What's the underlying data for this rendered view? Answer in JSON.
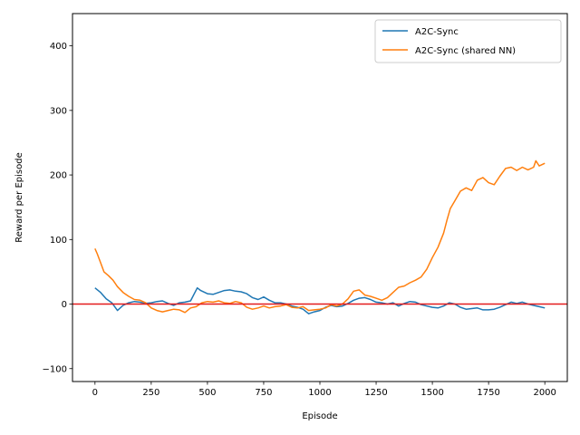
{
  "chart_data": {
    "type": "line",
    "title": "",
    "xlabel": "Episode",
    "ylabel": "Reward per Episode",
    "xlim": [
      -100,
      2100
    ],
    "ylim": [
      -120,
      450
    ],
    "xticks": [
      0,
      250,
      500,
      750,
      1000,
      1250,
      1500,
      1750,
      2000
    ],
    "xtick_labels": [
      "0",
      "250",
      "500",
      "750",
      "1000",
      "1250",
      "1500",
      "1750",
      "2000"
    ],
    "yticks": [
      -100,
      0,
      100,
      200,
      300,
      400
    ],
    "ytick_labels": [
      "−100",
      "0",
      "100",
      "200",
      "300",
      "400"
    ],
    "grid": false,
    "legend_position": "upper right",
    "reference_line": {
      "y": 0,
      "color": "#e31a1c"
    },
    "series": [
      {
        "name": "A2C-Sync",
        "color": "#1f77b4",
        "points": [
          [
            0,
            25
          ],
          [
            25,
            18
          ],
          [
            50,
            8
          ],
          [
            75,
            2
          ],
          [
            100,
            -10
          ],
          [
            125,
            -2
          ],
          [
            150,
            2
          ],
          [
            175,
            4
          ],
          [
            200,
            3
          ],
          [
            225,
            1
          ],
          [
            250,
            2
          ],
          [
            275,
            4
          ],
          [
            300,
            5
          ],
          [
            325,
            1
          ],
          [
            350,
            -2
          ],
          [
            375,
            2
          ],
          [
            400,
            3
          ],
          [
            425,
            5
          ],
          [
            440,
            15
          ],
          [
            455,
            25
          ],
          [
            470,
            21
          ],
          [
            500,
            16
          ],
          [
            525,
            15
          ],
          [
            550,
            18
          ],
          [
            575,
            21
          ],
          [
            600,
            22
          ],
          [
            625,
            20
          ],
          [
            650,
            19
          ],
          [
            675,
            16
          ],
          [
            700,
            10
          ],
          [
            725,
            7
          ],
          [
            750,
            11
          ],
          [
            775,
            6
          ],
          [
            800,
            2
          ],
          [
            825,
            2
          ],
          [
            850,
            0
          ],
          [
            875,
            -3
          ],
          [
            900,
            -5
          ],
          [
            925,
            -8
          ],
          [
            950,
            -15
          ],
          [
            975,
            -12
          ],
          [
            1000,
            -10
          ],
          [
            1025,
            -5
          ],
          [
            1050,
            -2
          ],
          [
            1075,
            -4
          ],
          [
            1100,
            -3
          ],
          [
            1125,
            1
          ],
          [
            1150,
            6
          ],
          [
            1175,
            9
          ],
          [
            1200,
            10
          ],
          [
            1225,
            7
          ],
          [
            1250,
            3
          ],
          [
            1275,
            2
          ],
          [
            1300,
            0
          ],
          [
            1325,
            2
          ],
          [
            1350,
            -3
          ],
          [
            1375,
            1
          ],
          [
            1400,
            4
          ],
          [
            1425,
            3
          ],
          [
            1450,
            -1
          ],
          [
            1475,
            -3
          ],
          [
            1500,
            -5
          ],
          [
            1525,
            -6
          ],
          [
            1550,
            -3
          ],
          [
            1575,
            2
          ],
          [
            1600,
            0
          ],
          [
            1625,
            -5
          ],
          [
            1650,
            -8
          ],
          [
            1675,
            -7
          ],
          [
            1700,
            -6
          ],
          [
            1725,
            -9
          ],
          [
            1750,
            -9
          ],
          [
            1775,
            -8
          ],
          [
            1800,
            -5
          ],
          [
            1825,
            -1
          ],
          [
            1850,
            3
          ],
          [
            1875,
            1
          ],
          [
            1900,
            3
          ],
          [
            1925,
            0
          ],
          [
            1950,
            -2
          ],
          [
            1975,
            -4
          ],
          [
            2000,
            -6
          ]
        ]
      },
      {
        "name": "A2C-Sync (shared NN)",
        "color": "#ff7f0e",
        "points": [
          [
            0,
            86
          ],
          [
            10,
            78
          ],
          [
            25,
            64
          ],
          [
            40,
            50
          ],
          [
            60,
            44
          ],
          [
            80,
            37
          ],
          [
            100,
            27
          ],
          [
            125,
            18
          ],
          [
            150,
            12
          ],
          [
            175,
            7
          ],
          [
            200,
            6
          ],
          [
            225,
            2
          ],
          [
            250,
            -6
          ],
          [
            275,
            -10
          ],
          [
            300,
            -12
          ],
          [
            325,
            -10
          ],
          [
            350,
            -8
          ],
          [
            375,
            -9
          ],
          [
            400,
            -13
          ],
          [
            425,
            -6
          ],
          [
            450,
            -4
          ],
          [
            475,
            2
          ],
          [
            500,
            4
          ],
          [
            525,
            3
          ],
          [
            550,
            5
          ],
          [
            575,
            2
          ],
          [
            600,
            1
          ],
          [
            625,
            4
          ],
          [
            650,
            2
          ],
          [
            675,
            -5
          ],
          [
            700,
            -8
          ],
          [
            725,
            -6
          ],
          [
            750,
            -3
          ],
          [
            775,
            -6
          ],
          [
            800,
            -4
          ],
          [
            825,
            -3
          ],
          [
            850,
            -1
          ],
          [
            875,
            -5
          ],
          [
            900,
            -6
          ],
          [
            925,
            -4
          ],
          [
            950,
            -10
          ],
          [
            975,
            -9
          ],
          [
            1000,
            -8
          ],
          [
            1025,
            -6
          ],
          [
            1050,
            -1
          ],
          [
            1075,
            -3
          ],
          [
            1100,
            0
          ],
          [
            1125,
            8
          ],
          [
            1150,
            20
          ],
          [
            1175,
            22
          ],
          [
            1200,
            14
          ],
          [
            1225,
            12
          ],
          [
            1250,
            9
          ],
          [
            1275,
            6
          ],
          [
            1300,
            10
          ],
          [
            1325,
            18
          ],
          [
            1350,
            26
          ],
          [
            1375,
            28
          ],
          [
            1400,
            33
          ],
          [
            1425,
            37
          ],
          [
            1450,
            42
          ],
          [
            1475,
            54
          ],
          [
            1500,
            72
          ],
          [
            1525,
            88
          ],
          [
            1550,
            110
          ],
          [
            1565,
            130
          ],
          [
            1580,
            148
          ],
          [
            1600,
            160
          ],
          [
            1625,
            175
          ],
          [
            1650,
            180
          ],
          [
            1675,
            176
          ],
          [
            1700,
            192
          ],
          [
            1725,
            196
          ],
          [
            1750,
            188
          ],
          [
            1775,
            185
          ],
          [
            1800,
            198
          ],
          [
            1825,
            210
          ],
          [
            1850,
            212
          ],
          [
            1875,
            207
          ],
          [
            1900,
            212
          ],
          [
            1925,
            208
          ],
          [
            1950,
            212
          ],
          [
            1960,
            222
          ],
          [
            1975,
            214
          ],
          [
            2000,
            218
          ]
        ]
      }
    ]
  }
}
